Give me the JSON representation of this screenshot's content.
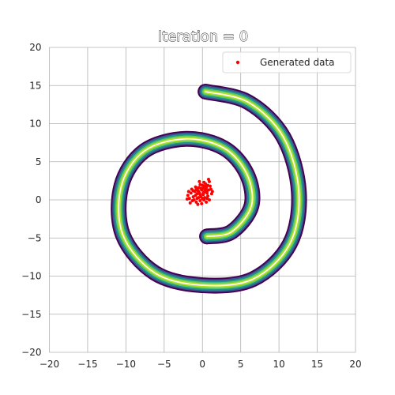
{
  "chart_data": {
    "type": "scatter",
    "title": "Iteration = 0",
    "xlabel": "",
    "ylabel": "",
    "xlim": [
      -20,
      20
    ],
    "ylim": [
      -20,
      20
    ],
    "xticks": [
      -20,
      -15,
      -10,
      -5,
      0,
      5,
      10,
      15,
      20
    ],
    "yticks": [
      -20,
      -15,
      -10,
      -5,
      0,
      5,
      10,
      15,
      20
    ],
    "xtick_labels": [
      "−20",
      "−15",
      "−10",
      "−5",
      "0",
      "5",
      "10",
      "15",
      "20"
    ],
    "ytick_labels": [
      "−20",
      "−15",
      "−10",
      "−5",
      "0",
      "5",
      "10",
      "15",
      "20"
    ],
    "grid": true,
    "legend": {
      "position": "top-right",
      "entries": [
        "Generated data"
      ]
    },
    "colors": {
      "generated": "#ff0000",
      "contour_outer": "#440154",
      "contour_mid": "#21918c",
      "contour_inner": "#b5de2b",
      "ridge": "#ffffff",
      "grid": "#b0b0b0"
    },
    "target_density": {
      "shape": "spiral contour band",
      "centerline": [
        [
          0.4,
          14.2
        ],
        [
          6.0,
          12.8
        ],
        [
          10.6,
          8.2
        ],
        [
          12.6,
          1.0
        ],
        [
          11.4,
          -5.8
        ],
        [
          6.6,
          -10.4
        ],
        [
          0.0,
          -11.2
        ],
        [
          -6.2,
          -9.6
        ],
        [
          -10.4,
          -4.6
        ],
        [
          -10.6,
          1.8
        ],
        [
          -7.6,
          6.4
        ],
        [
          -2.2,
          8.0
        ],
        [
          2.8,
          6.8
        ],
        [
          5.8,
          3.4
        ],
        [
          6.4,
          -0.8
        ],
        [
          3.8,
          -4.2
        ],
        [
          0.6,
          -4.8
        ]
      ]
    },
    "series": [
      {
        "name": "Generated data",
        "points": [
          [
            -0.6,
            1.2
          ],
          [
            -0.2,
            1.5
          ],
          [
            0.3,
            1.1
          ],
          [
            0.5,
            1.6
          ],
          [
            0.8,
            1.3
          ],
          [
            -0.9,
            0.6
          ],
          [
            -0.4,
            0.9
          ],
          [
            0.1,
            0.7
          ],
          [
            0.6,
            0.9
          ],
          [
            1.0,
            1.8
          ],
          [
            -1.2,
            0.4
          ],
          [
            -0.7,
            0.2
          ],
          [
            -0.2,
            0.4
          ],
          [
            0.3,
            0.3
          ],
          [
            0.7,
            0.5
          ],
          [
            -1.5,
            0.9
          ],
          [
            -1.0,
            1.1
          ],
          [
            -0.5,
            1.6
          ],
          [
            0.0,
            1.9
          ],
          [
            0.4,
            2.1
          ],
          [
            0.9,
            2.4
          ],
          [
            -1.3,
            -0.1
          ],
          [
            -0.8,
            -0.3
          ],
          [
            -0.3,
            -0.1
          ],
          [
            0.2,
            0.0
          ],
          [
            0.6,
            0.2
          ],
          [
            -1.7,
            0.2
          ],
          [
            -1.9,
            0.6
          ],
          [
            -1.4,
            1.4
          ],
          [
            -0.9,
            1.7
          ],
          [
            -0.3,
            2.0
          ],
          [
            0.2,
            2.3
          ],
          [
            0.7,
            1.9
          ],
          [
            1.1,
            1.4
          ],
          [
            1.2,
            0.8
          ],
          [
            -0.1,
            1.3
          ],
          [
            0.1,
            1.5
          ],
          [
            -0.5,
            1.1
          ],
          [
            0.4,
            1.4
          ],
          [
            -0.7,
            0.8
          ],
          [
            0.2,
            1.0
          ],
          [
            -0.3,
            0.7
          ],
          [
            -1.1,
            0.0
          ],
          [
            -0.6,
            -0.6
          ],
          [
            -0.1,
            -0.5
          ],
          [
            -1.6,
            -0.4
          ],
          [
            0.5,
            -0.3
          ],
          [
            0.9,
            0.0
          ],
          [
            -2.0,
            0.1
          ],
          [
            -1.8,
            1.1
          ],
          [
            1.3,
            1.1
          ],
          [
            0.8,
            2.7
          ],
          [
            -0.4,
            2.4
          ],
          [
            0.0,
            0.2
          ],
          [
            -0.8,
            1.4
          ],
          [
            0.3,
            1.8
          ],
          [
            -1.2,
            1.2
          ],
          [
            0.6,
            1.2
          ],
          [
            -0.5,
            0.3
          ],
          [
            0.1,
            0.9
          ]
        ]
      }
    ]
  }
}
